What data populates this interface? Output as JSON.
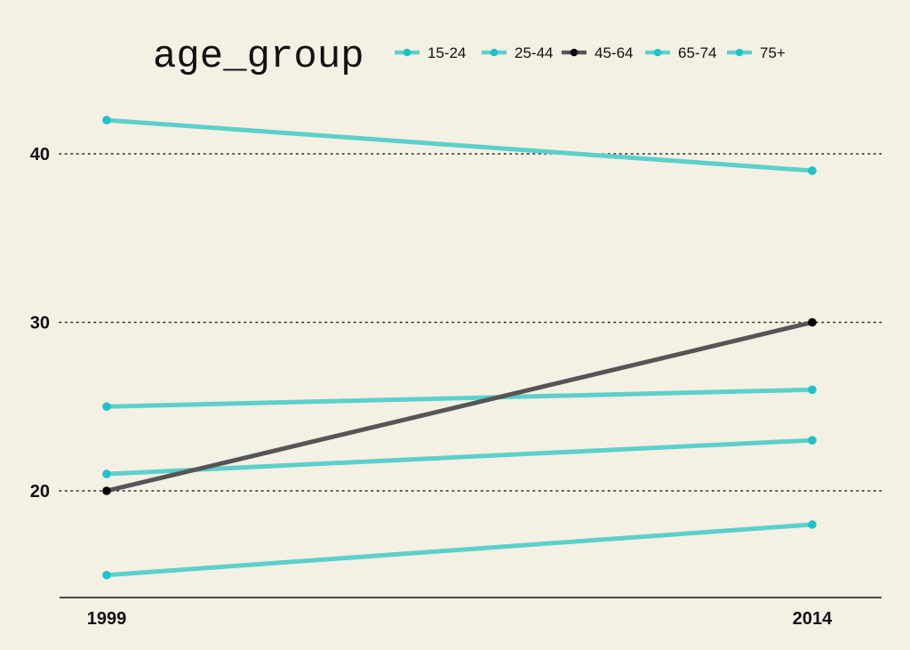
{
  "chart_data": {
    "type": "line",
    "legend": {
      "title": "age_group",
      "position": "top"
    },
    "x": [
      "1999",
      "2014"
    ],
    "series": [
      {
        "name": "15-24",
        "values": [
          15,
          18
        ],
        "color": "#5bd0cc"
      },
      {
        "name": "25-44",
        "values": [
          21,
          23
        ],
        "color": "#5bd0cc"
      },
      {
        "name": "45-64",
        "values": [
          20,
          30
        ],
        "color": "#555555",
        "point_color": "#000000"
      },
      {
        "name": "65-74",
        "values": [
          25,
          26
        ],
        "color": "#5bd0cc"
      },
      {
        "name": "75+",
        "values": [
          42,
          39
        ],
        "color": "#5bd0cc"
      }
    ],
    "y_ticks": [
      20,
      30,
      40
    ],
    "ylim": [
      13.7,
      44.9
    ],
    "grid": "horizontal dotted",
    "title": "",
    "xlabel": "",
    "ylabel": ""
  }
}
